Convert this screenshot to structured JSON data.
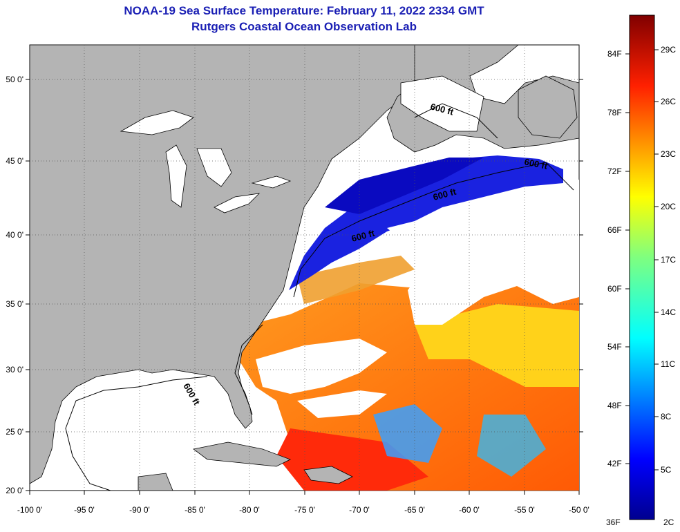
{
  "header": {
    "title": "NOAA-19 Sea Surface Temperature:  February 11, 2022 2334 GMT",
    "subtitle": "Rutgers Coastal Ocean Observation Lab"
  },
  "map": {
    "lon_ticks": [
      "-100 0'",
      "-95 0'",
      "-90 0'",
      "-85 0'",
      "-80 0'",
      "-75 0'",
      "-70 0'",
      "-65 0'",
      "-60 0'",
      "-55 0'",
      "-50 0'"
    ],
    "lat_ticks": [
      "50 0'",
      "45 0'",
      "40 0'",
      "35 0'",
      "30 0'",
      "25 0'",
      "20 0'"
    ],
    "contour_labels": [
      "600 ft",
      "600 ft",
      "600 ft",
      "600 ft",
      "600 ft"
    ],
    "colors": {
      "land": "#b4b4b4",
      "cloud": "#ffffff"
    }
  },
  "colorbar": {
    "fahrenheit": [
      "84F",
      "78F",
      "72F",
      "66F",
      "60F",
      "54F",
      "48F",
      "42F",
      "36F"
    ],
    "celsius": [
      "29C",
      "26C",
      "23C",
      "20C",
      "17C",
      "14C",
      "11C",
      "8C",
      "5C",
      "2C"
    ]
  }
}
